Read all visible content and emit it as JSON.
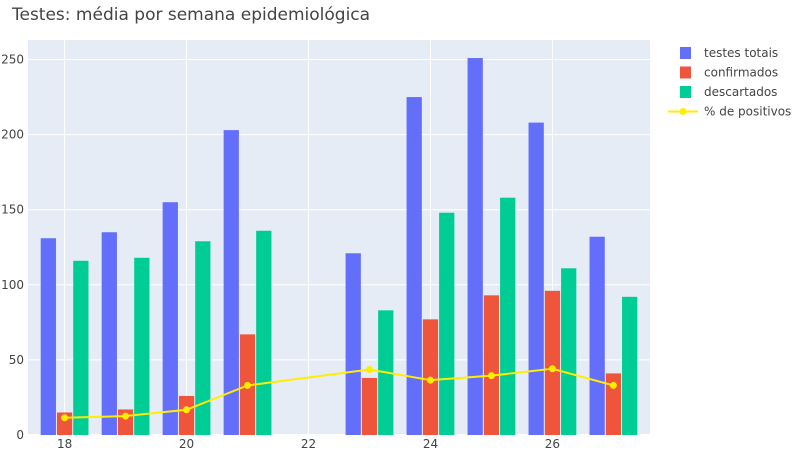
{
  "chart_data": {
    "type": "bar",
    "title": "Testes: média por semana epidemiológica",
    "xlabel": "",
    "ylabel": "",
    "x": [
      18,
      19,
      20,
      21,
      22,
      23,
      24,
      25,
      26,
      27
    ],
    "x_ticks": [
      18,
      20,
      22,
      24,
      26
    ],
    "y_ticks": [
      0,
      50,
      100,
      150,
      200,
      250
    ],
    "xlim": [
      17.4,
      27.6
    ],
    "ylim": [
      0,
      263
    ],
    "grid": true,
    "legend_position": "top-right",
    "series": [
      {
        "name": "testes totais",
        "type": "bar",
        "color": "#636efa",
        "values": [
          131,
          135,
          155,
          203,
          null,
          121,
          225,
          251,
          208,
          132
        ]
      },
      {
        "name": "confirmados",
        "type": "bar",
        "color": "#ef553b",
        "values": [
          15,
          17,
          26,
          67,
          null,
          38,
          77,
          93,
          96,
          41
        ]
      },
      {
        "name": "descartados",
        "type": "bar",
        "color": "#00cc96",
        "values": [
          116,
          118,
          129,
          136,
          null,
          83,
          148,
          158,
          111,
          92
        ]
      },
      {
        "name": "% de positivos",
        "type": "line",
        "color": "#ffee00",
        "values": [
          11.5,
          12.6,
          16.8,
          33.0,
          null,
          43.6,
          36.5,
          39.5,
          44.1,
          33.0
        ]
      }
    ]
  }
}
